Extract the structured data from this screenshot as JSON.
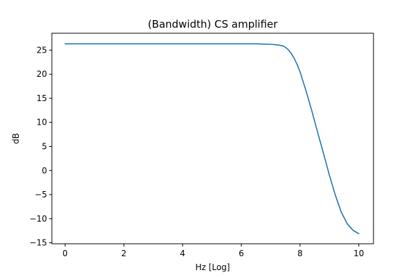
{
  "chart_data": {
    "type": "line",
    "title": "(Bandwidth) CS amplifier",
    "xlabel": "Hz [Log]",
    "ylabel": "dB",
    "xlim": [
      -0.45,
      10.5
    ],
    "ylim": [
      -15.2,
      28.5
    ],
    "xticks": [
      0,
      2,
      4,
      6,
      8,
      10
    ],
    "yticks": [
      -15,
      -10,
      -5,
      0,
      5,
      10,
      15,
      20,
      25
    ],
    "grid": false,
    "legend": "none",
    "series": [
      {
        "color": "#1f77b4",
        "x": [
          0,
          1,
          2,
          3,
          4,
          5,
          6,
          6.5,
          6.8,
          7.0,
          7.2,
          7.4,
          7.5,
          7.6,
          7.7,
          7.8,
          7.9,
          8.0,
          8.2,
          8.4,
          8.6,
          8.8,
          9.0,
          9.2,
          9.4,
          9.6,
          9.8,
          10.0
        ],
        "y": [
          26.3,
          26.3,
          26.3,
          26.3,
          26.3,
          26.3,
          26.3,
          26.3,
          26.25,
          26.2,
          26.1,
          25.9,
          25.6,
          25.1,
          24.3,
          23.3,
          22.0,
          20.5,
          16.6,
          12.4,
          7.9,
          3.5,
          -1.0,
          -5.1,
          -8.6,
          -11.0,
          -12.4,
          -13.1
        ]
      }
    ]
  }
}
